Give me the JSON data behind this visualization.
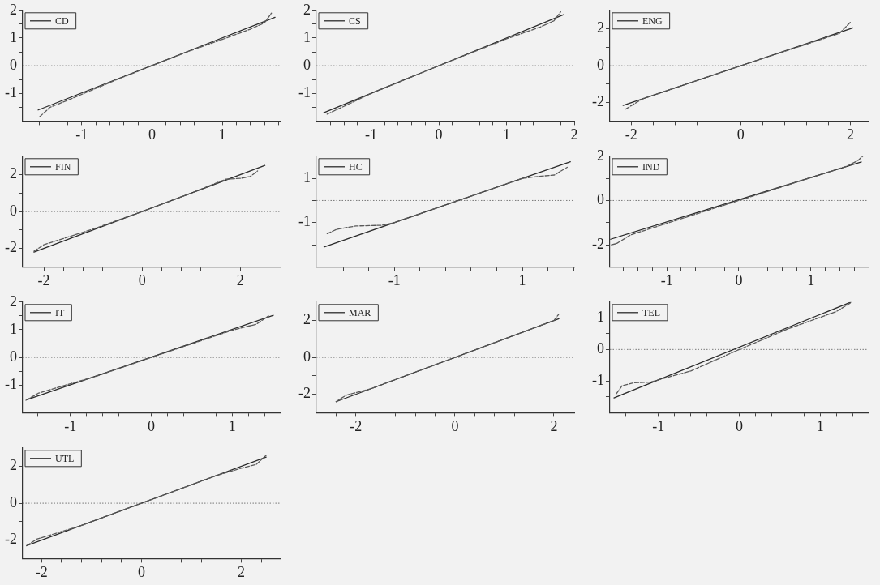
{
  "chart_data": [
    {
      "type": "line",
      "legend": "top left",
      "grid": false,
      "xlim": [
        -1.84,
        1.83
      ],
      "ylim": [
        -2,
        2
      ],
      "xticks": [
        {
          "value": -1.6,
          "label": null
        },
        {
          "value": -1.4,
          "label": null
        },
        {
          "value": -1.2,
          "label": null
        },
        -1,
        {
          "value": -0.8,
          "label": null
        },
        {
          "value": -0.6,
          "label": null
        },
        {
          "value": -0.4,
          "label": null
        },
        {
          "value": -0.2,
          "label": null
        },
        0,
        {
          "value": 0.2,
          "label": null
        },
        {
          "value": 0.4,
          "label": null
        },
        {
          "value": 0.6,
          "label": null
        },
        {
          "value": 0.8,
          "label": null
        },
        1,
        {
          "value": 1.2,
          "label": null
        },
        {
          "value": 1.4,
          "label": null
        },
        {
          "value": 1.6,
          "label": null
        },
        {
          "value": 1.8,
          "label": null
        }
      ],
      "yticks": [
        {
          "value": -1.5,
          "label": null
        },
        -1,
        {
          "value": -0.5,
          "label": null
        },
        0,
        {
          "value": 0.5,
          "label": null
        },
        1,
        {
          "value": 1.5,
          "label": null
        },
        2
      ],
      "ref_lines": [
        {
          "axis": "y",
          "value": 0,
          "line_style": "dotted",
          "color": "#777777"
        }
      ],
      "series": [
        {
          "name": "CD",
          "color": "#2b2b2b",
          "line_style": "solid",
          "x": [
            -1.62,
            1.75
          ],
          "values": [
            -1.6,
            1.75
          ]
        },
        {
          "color": "#5a5a5a",
          "line_style": "dashed",
          "x": [
            -1.6,
            -1.45,
            -1.2,
            -0.5,
            0,
            0.5,
            1,
            1.4,
            1.6,
            1.7
          ],
          "values": [
            -1.85,
            -1.5,
            -1.25,
            -0.5,
            0,
            0.5,
            0.95,
            1.32,
            1.55,
            1.9
          ]
        }
      ]
    },
    {
      "type": "line",
      "legend": "top left",
      "grid": false,
      "xlim": [
        -1.81,
        2
      ],
      "ylim": [
        -2,
        2
      ],
      "xticks": [
        {
          "value": -1.6,
          "label": null
        },
        {
          "value": -1.4,
          "label": null
        },
        {
          "value": -1.2,
          "label": null
        },
        -1,
        {
          "value": -0.8,
          "label": null
        },
        {
          "value": -0.6,
          "label": null
        },
        {
          "value": -0.4,
          "label": null
        },
        {
          "value": -0.2,
          "label": null
        },
        0,
        {
          "value": 0.2,
          "label": null
        },
        {
          "value": 0.4,
          "label": null
        },
        {
          "value": 0.6,
          "label": null
        },
        {
          "value": 0.8,
          "label": null
        },
        1,
        {
          "value": 1.2,
          "label": null
        },
        {
          "value": 1.4,
          "label": null
        },
        {
          "value": 1.6,
          "label": null
        },
        {
          "value": 1.8,
          "label": null
        },
        2
      ],
      "yticks": [
        {
          "value": -1.5,
          "label": null
        },
        -1,
        {
          "value": -0.5,
          "label": null
        },
        0,
        {
          "value": 0.5,
          "label": null
        },
        1,
        {
          "value": 1.5,
          "label": null
        },
        2
      ],
      "ref_lines": [
        {
          "axis": "y",
          "value": 0,
          "line_style": "dotted",
          "color": "#777777"
        }
      ],
      "series": [
        {
          "name": "CS",
          "color": "#2b2b2b",
          "line_style": "solid",
          "x": [
            -1.7,
            1.85
          ],
          "values": [
            -1.7,
            1.85
          ]
        },
        {
          "color": "#5a5a5a",
          "line_style": "dashed",
          "x": [
            -1.65,
            -1.3,
            -1,
            0,
            1,
            1.5,
            1.7,
            1.8
          ],
          "values": [
            -1.75,
            -1.35,
            -1,
            0,
            0.97,
            1.4,
            1.62,
            1.95
          ]
        }
      ]
    },
    {
      "type": "line",
      "legend": "top left",
      "grid": false,
      "xlim": [
        -2.39,
        2.32
      ],
      "ylim": [
        -3,
        3
      ],
      "xticks": [
        -2,
        {
          "value": -1.6,
          "label": null
        },
        {
          "value": -1.2,
          "label": null
        },
        {
          "value": -0.8,
          "label": null
        },
        {
          "value": -0.4,
          "label": null
        },
        0,
        {
          "value": 0.4,
          "label": null
        },
        {
          "value": 0.8,
          "label": null
        },
        {
          "value": 1.2,
          "label": null
        },
        {
          "value": 1.6,
          "label": null
        },
        2
      ],
      "yticks": [
        -2,
        {
          "value": -1,
          "label": null
        },
        0,
        {
          "value": 1,
          "label": null
        },
        2
      ],
      "ref_lines": [
        {
          "axis": "y",
          "value": 0,
          "line_style": "dotted",
          "color": "#777777"
        }
      ],
      "series": [
        {
          "name": "ENG",
          "color": "#2b2b2b",
          "line_style": "solid",
          "x": [
            -2.15,
            2.05
          ],
          "values": [
            -2.15,
            2.05
          ]
        },
        {
          "color": "#5a5a5a",
          "line_style": "dashed",
          "x": [
            -2.1,
            -1.8,
            0,
            1.8,
            2
          ],
          "values": [
            -2.35,
            -1.8,
            0,
            1.75,
            2.35
          ]
        }
      ]
    },
    {
      "type": "line",
      "legend": "top left",
      "grid": false,
      "xlim": [
        -2.43,
        2.82
      ],
      "ylim": [
        -3,
        3
      ],
      "xticks": [
        -2,
        {
          "value": -1.6,
          "label": null
        },
        {
          "value": -1.2,
          "label": null
        },
        {
          "value": -0.8,
          "label": null
        },
        {
          "value": -0.4,
          "label": null
        },
        0,
        {
          "value": 0.4,
          "label": null
        },
        {
          "value": 0.8,
          "label": null
        },
        {
          "value": 1.2,
          "label": null
        },
        {
          "value": 1.6,
          "label": null
        },
        2,
        {
          "value": 2.4,
          "label": null
        }
      ],
      "yticks": [
        -2,
        {
          "value": -1,
          "label": null
        },
        0,
        {
          "value": 1,
          "label": null
        },
        2
      ],
      "ref_lines": [
        {
          "axis": "y",
          "value": 0,
          "line_style": "dotted",
          "color": "#777777"
        }
      ],
      "series": [
        {
          "name": "FIN",
          "color": "#2b2b2b",
          "line_style": "solid",
          "x": [
            -2.2,
            2.5
          ],
          "values": [
            -2.2,
            2.5
          ]
        },
        {
          "color": "#5a5a5a",
          "line_style": "dashed",
          "x": [
            -2.2,
            -2,
            -1,
            0,
            1,
            1.7,
            2,
            2.2,
            2.35
          ],
          "values": [
            -2.15,
            -1.8,
            -0.95,
            0,
            1,
            1.75,
            1.8,
            1.9,
            2.2
          ]
        }
      ]
    },
    {
      "type": "line",
      "legend": "top left",
      "grid": false,
      "xlim": [
        -2.22,
        1.81
      ],
      "ylim": [
        -3,
        2
      ],
      "xticks": [
        {
          "value": -1.8,
          "label": null
        },
        {
          "value": -1.4,
          "label": null
        },
        -1,
        {
          "value": -0.6,
          "label": null
        },
        {
          "value": -0.2,
          "label": null
        },
        {
          "value": 0.2,
          "label": null
        },
        {
          "value": 0.6,
          "label": null
        },
        1,
        {
          "value": 1.4,
          "label": null
        },
        {
          "value": 1.8,
          "label": null
        }
      ],
      "yticks": [
        {
          "value": -2,
          "label": null
        },
        -1,
        {
          "value": 0,
          "label": null
        },
        1
      ],
      "ref_lines": [
        {
          "axis": "y",
          "value": 0,
          "line_style": "dotted",
          "color": "#777777"
        }
      ],
      "series": [
        {
          "name": "HC",
          "color": "#2b2b2b",
          "line_style": "solid",
          "x": [
            -2.1,
            1.75
          ],
          "values": [
            -2.1,
            1.75
          ]
        },
        {
          "color": "#5a5a5a",
          "line_style": "dashed",
          "x": [
            -2.05,
            -1.9,
            -1.6,
            -1.2,
            -1,
            0,
            1,
            1.3,
            1.5,
            1.7
          ],
          "values": [
            -1.5,
            -1.3,
            -1.15,
            -1.12,
            -1,
            0,
            1,
            1.1,
            1.15,
            1.5
          ]
        }
      ]
    },
    {
      "type": "line",
      "legend": "top left",
      "grid": false,
      "xlim": [
        -1.79,
        1.79
      ],
      "ylim": [
        -3,
        2
      ],
      "xticks": [
        {
          "value": -1.6,
          "label": null
        },
        {
          "value": -1.4,
          "label": null
        },
        {
          "value": -1.2,
          "label": null
        },
        -1,
        {
          "value": -0.8,
          "label": null
        },
        {
          "value": -0.6,
          "label": null
        },
        {
          "value": -0.4,
          "label": null
        },
        {
          "value": -0.2,
          "label": null
        },
        0,
        {
          "value": 0.2,
          "label": null
        },
        {
          "value": 0.4,
          "label": null
        },
        {
          "value": 0.6,
          "label": null
        },
        {
          "value": 0.8,
          "label": null
        },
        1,
        {
          "value": 1.2,
          "label": null
        },
        {
          "value": 1.4,
          "label": null
        },
        {
          "value": 1.6,
          "label": null
        }
      ],
      "yticks": [
        -2,
        {
          "value": -1,
          "label": null
        },
        0,
        {
          "value": 1,
          "label": null
        },
        2
      ],
      "ref_lines": [
        {
          "axis": "y",
          "value": 0,
          "line_style": "dotted",
          "color": "#777777"
        }
      ],
      "series": [
        {
          "name": "IND",
          "color": "#2b2b2b",
          "line_style": "solid",
          "x": [
            -1.78,
            1.7
          ],
          "values": [
            -1.75,
            1.74
          ]
        },
        {
          "color": "#5a5a5a",
          "line_style": "dashed",
          "x": [
            -1.77,
            -1.7,
            -1.5,
            0,
            1.5,
            1.65,
            1.72
          ],
          "values": [
            -2,
            -1.95,
            -1.55,
            0,
            1.55,
            1.8,
            2
          ]
        }
      ]
    },
    {
      "type": "line",
      "legend": "top left",
      "grid": false,
      "xlim": [
        -1.59,
        1.6
      ],
      "ylim": [
        -2,
        2
      ],
      "xticks": [
        {
          "value": -1.4,
          "label": null
        },
        {
          "value": -1.2,
          "label": null
        },
        -1,
        {
          "value": -0.8,
          "label": null
        },
        {
          "value": -0.6,
          "label": null
        },
        {
          "value": -0.4,
          "label": null
        },
        {
          "value": -0.2,
          "label": null
        },
        0,
        {
          "value": 0.2,
          "label": null
        },
        {
          "value": 0.4,
          "label": null
        },
        {
          "value": 0.6,
          "label": null
        },
        {
          "value": 0.8,
          "label": null
        },
        1,
        {
          "value": 1.2,
          "label": null
        },
        {
          "value": 1.4,
          "label": null
        }
      ],
      "yticks": [
        {
          "value": -1.5,
          "label": null
        },
        -1,
        {
          "value": -0.5,
          "label": null
        },
        0,
        {
          "value": 0.5,
          "label": null
        },
        1,
        {
          "value": 1.5,
          "label": null
        },
        2
      ],
      "ref_lines": [
        {
          "axis": "y",
          "value": 0,
          "line_style": "dotted",
          "color": "#777777"
        }
      ],
      "series": [
        {
          "name": "IT",
          "color": "#2b2b2b",
          "line_style": "solid",
          "x": [
            -1.54,
            1.51
          ],
          "values": [
            -1.53,
            1.52
          ]
        },
        {
          "color": "#5a5a5a",
          "line_style": "dashed",
          "x": [
            -1.55,
            -1.4,
            -1,
            -0.7,
            0,
            1,
            1.3,
            1.45
          ],
          "values": [
            -1.55,
            -1.3,
            -0.95,
            -0.7,
            0,
            0.98,
            1.2,
            1.5
          ]
        }
      ]
    },
    {
      "type": "line",
      "legend": "top left",
      "grid": false,
      "xlim": [
        -2.8,
        2.41
      ],
      "ylim": [
        -3,
        3
      ],
      "xticks": [
        {
          "value": -2.4,
          "label": null
        },
        -2,
        {
          "value": -1.6,
          "label": null
        },
        {
          "value": -1.2,
          "label": null
        },
        {
          "value": -0.8,
          "label": null
        },
        {
          "value": -0.4,
          "label": null
        },
        0,
        {
          "value": 0.4,
          "label": null
        },
        {
          "value": 0.8,
          "label": null
        },
        {
          "value": 1.2,
          "label": null
        },
        {
          "value": 1.6,
          "label": null
        },
        2
      ],
      "yticks": [
        -2,
        {
          "value": -1,
          "label": null
        },
        0,
        {
          "value": 1,
          "label": null
        },
        2
      ],
      "ref_lines": [
        {
          "axis": "y",
          "value": 0,
          "line_style": "dotted",
          "color": "#777777"
        }
      ],
      "series": [
        {
          "name": "MAR",
          "color": "#2b2b2b",
          "line_style": "solid",
          "x": [
            -2.4,
            2.1
          ],
          "values": [
            -2.4,
            2.1
          ]
        },
        {
          "color": "#5a5a5a",
          "line_style": "dashed",
          "x": [
            -2.4,
            -2.2,
            -1.7,
            0,
            2,
            2.1
          ],
          "values": [
            -2.4,
            -2.05,
            -1.7,
            0,
            2,
            2.35
          ]
        }
      ]
    },
    {
      "type": "line",
      "legend": "top left",
      "grid": false,
      "xlim": [
        -1.6,
        1.59
      ],
      "ylim": [
        -2,
        1.5
      ],
      "xticks": [
        {
          "value": -1.4,
          "label": null
        },
        {
          "value": -1.2,
          "label": null
        },
        -1,
        {
          "value": -0.8,
          "label": null
        },
        {
          "value": -0.6,
          "label": null
        },
        {
          "value": -0.4,
          "label": null
        },
        {
          "value": -0.2,
          "label": null
        },
        0,
        {
          "value": 0.2,
          "label": null
        },
        {
          "value": 0.4,
          "label": null
        },
        {
          "value": 0.6,
          "label": null
        },
        {
          "value": 0.8,
          "label": null
        },
        1,
        {
          "value": 1.2,
          "label": null
        },
        {
          "value": 1.4,
          "label": null
        }
      ],
      "yticks": [
        {
          "value": -1.5,
          "label": null
        },
        -1,
        {
          "value": -0.5,
          "label": null
        },
        0,
        {
          "value": 0.5,
          "label": null
        },
        1
      ],
      "ref_lines": [
        {
          "axis": "y",
          "value": 0,
          "line_style": "dotted",
          "color": "#777777"
        }
      ],
      "series": [
        {
          "name": "TEL",
          "color": "#2b2b2b",
          "line_style": "solid",
          "x": [
            -1.55,
            1.38
          ],
          "values": [
            -1.53,
            1.5
          ]
        },
        {
          "color": "#5a5a5a",
          "line_style": "dashed",
          "x": [
            -1.52,
            -1.45,
            -1.3,
            -1.1,
            -0.6,
            0,
            0.6,
            1.2,
            1.38
          ],
          "values": [
            -1.4,
            -1.15,
            -1.05,
            -1.03,
            -0.68,
            0,
            0.65,
            1.2,
            1.48
          ]
        }
      ]
    },
    {
      "type": "line",
      "legend": "top left",
      "grid": false,
      "xlim": [
        -2.38,
        2.79
      ],
      "ylim": [
        -3,
        3
      ],
      "xticks": [
        -2,
        {
          "value": -1.6,
          "label": null
        },
        {
          "value": -1.2,
          "label": null
        },
        {
          "value": -0.8,
          "label": null
        },
        {
          "value": -0.4,
          "label": null
        },
        0,
        {
          "value": 0.4,
          "label": null
        },
        {
          "value": 0.8,
          "label": null
        },
        {
          "value": 1.2,
          "label": null
        },
        {
          "value": 1.6,
          "label": null
        },
        2,
        {
          "value": 2.4,
          "label": null
        }
      ],
      "yticks": [
        -2,
        {
          "value": -1,
          "label": null
        },
        0,
        {
          "value": 1,
          "label": null
        },
        2
      ],
      "ref_lines": [
        {
          "axis": "y",
          "value": 0,
          "line_style": "dotted",
          "color": "#777777"
        }
      ],
      "series": [
        {
          "name": "UTL",
          "color": "#2b2b2b",
          "line_style": "solid",
          "x": [
            -2.3,
            2.5
          ],
          "values": [
            -2.3,
            2.5
          ]
        },
        {
          "color": "#5a5a5a",
          "line_style": "dashed",
          "x": [
            -2.3,
            -2.1,
            -1.2,
            0,
            1.5,
            2,
            2.3,
            2.5
          ],
          "values": [
            -2.3,
            -1.95,
            -1.2,
            0,
            1.5,
            1.9,
            2.1,
            2.6
          ]
        }
      ]
    }
  ]
}
